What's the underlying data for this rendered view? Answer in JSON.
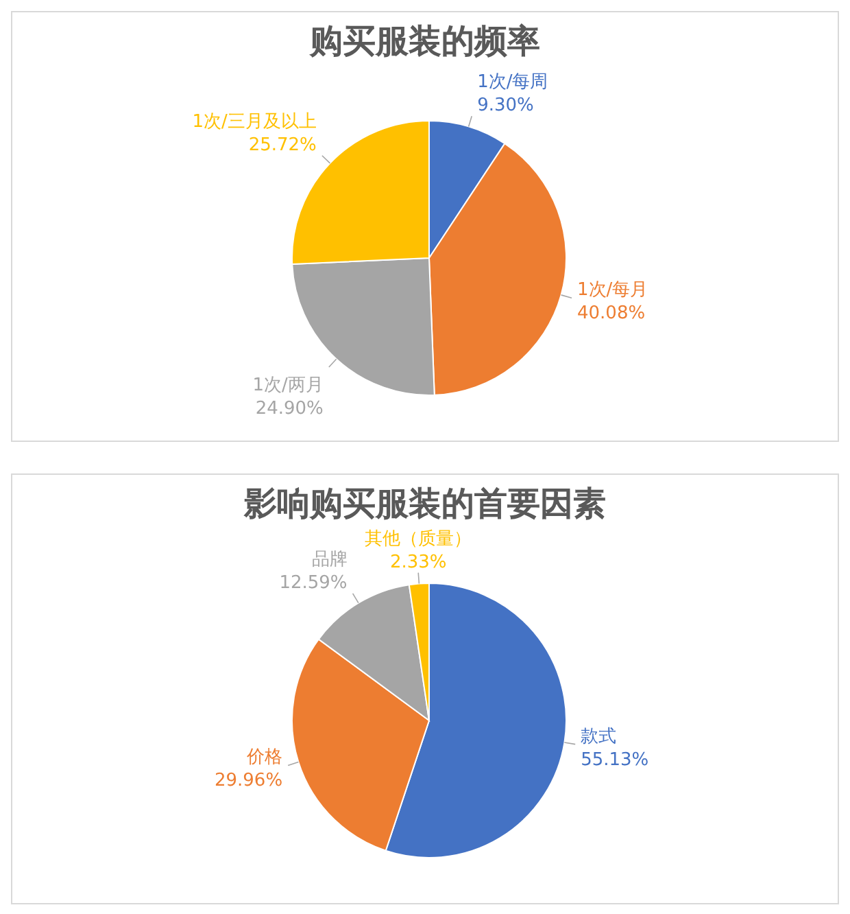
{
  "chart_data": [
    {
      "type": "pie",
      "title": "购买服装的频率",
      "categories": [
        "1次/每周",
        "1次/每月",
        "1次/两月",
        "1次/三月及以上"
      ],
      "values": [
        9.3,
        40.08,
        24.9,
        25.72
      ],
      "colors": [
        "#4472c4",
        "#ed7d31",
        "#a5a5a5",
        "#ffc000"
      ],
      "value_labels": [
        "9.30%",
        "40.08%",
        "24.90%",
        "25.72%"
      ]
    },
    {
      "type": "pie",
      "title": "影响购买服装的首要因素",
      "categories": [
        "款式",
        "价格",
        "品牌",
        "其他（质量）"
      ],
      "values": [
        55.13,
        29.96,
        12.59,
        2.33
      ],
      "colors": [
        "#4472c4",
        "#ed7d31",
        "#a5a5a5",
        "#ffc000"
      ],
      "value_labels": [
        "55.13%",
        "29.96%",
        "12.59%",
        "2.33%"
      ]
    }
  ]
}
